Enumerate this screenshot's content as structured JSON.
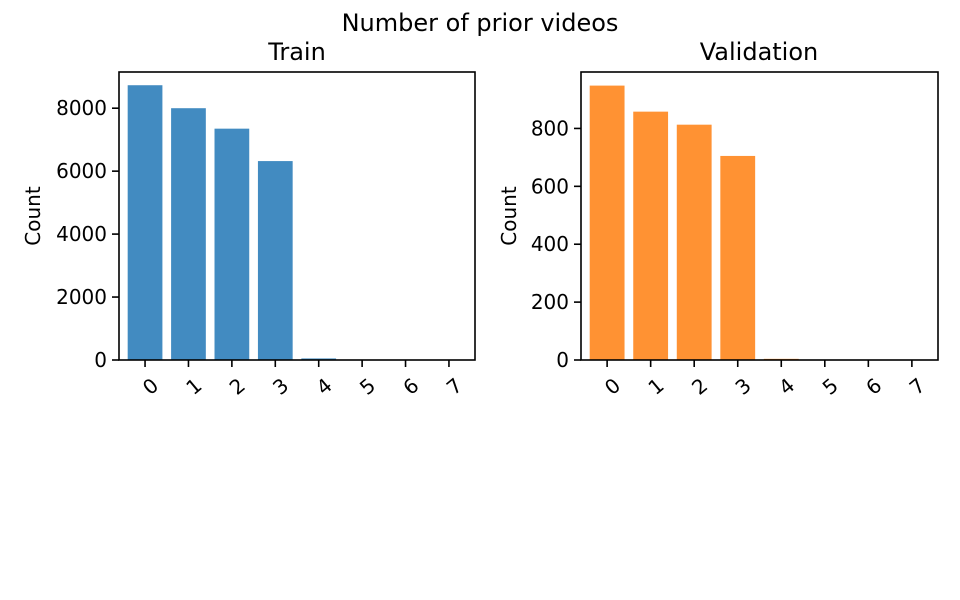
{
  "figure": {
    "title": "Number of prior videos"
  },
  "chart_data": [
    {
      "type": "bar",
      "title": "Train",
      "xlabel": "",
      "ylabel": "Count",
      "categories": [
        "0",
        "1",
        "2",
        "3",
        "4",
        "5",
        "6",
        "7"
      ],
      "values": [
        8730,
        8000,
        7350,
        6320,
        50,
        5,
        2,
        1
      ],
      "ylim": [
        0,
        9150
      ],
      "yticks": [
        0,
        2000,
        4000,
        6000,
        8000
      ],
      "color": "#428bc1",
      "grid": false,
      "legend": "none"
    },
    {
      "type": "bar",
      "title": "Validation",
      "xlabel": "",
      "ylabel": "Count",
      "categories": [
        "0",
        "1",
        "2",
        "3",
        "4",
        "5",
        "6",
        "7"
      ],
      "values": [
        948,
        858,
        813,
        705,
        4,
        1,
        0,
        0
      ],
      "ylim": [
        0,
        995
      ],
      "yticks": [
        0,
        200,
        400,
        600,
        800
      ],
      "color": "#ff9233",
      "grid": false,
      "legend": "none"
    }
  ]
}
